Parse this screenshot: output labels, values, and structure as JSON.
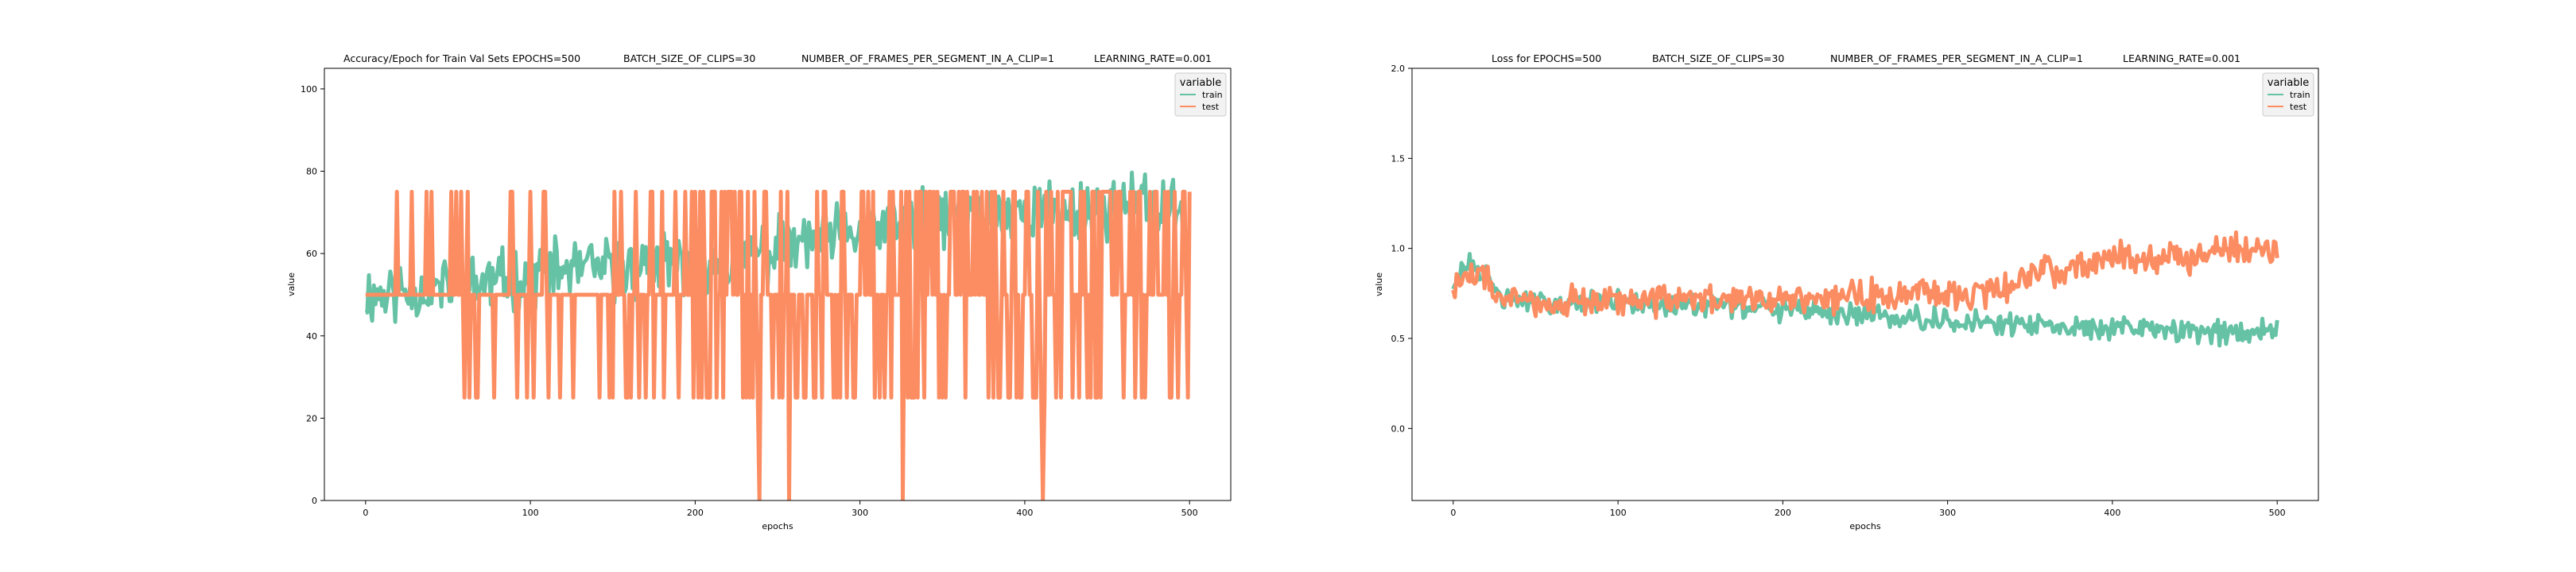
{
  "chart_data": [
    {
      "type": "line",
      "title_parts": [
        "Accuracy/Epoch for Train Val Sets EPOCHS=500",
        "BATCH_SIZE_OF_CLIPS=30",
        "NUMBER_OF_FRAMES_PER_SEGMENT_IN_A_CLIP=1",
        "LEARNING_RATE=0.001"
      ],
      "xlabel": "epochs",
      "ylabel": "value",
      "xlim": [
        -25,
        525
      ],
      "ylim": [
        0,
        105
      ],
      "xticks": [
        0,
        100,
        200,
        300,
        400,
        500
      ],
      "yticks": [
        0,
        20,
        40,
        60,
        80,
        100
      ],
      "grid": false,
      "legend": {
        "title": "variable",
        "position": "top-right",
        "entries": [
          "train",
          "test"
        ]
      },
      "colors": {
        "train": "#66c2a5",
        "test": "#fc8d62"
      },
      "series": [
        {
          "name": "train",
          "x": [
            0,
            25,
            50,
            75,
            100,
            125,
            150,
            175,
            200,
            225,
            250,
            275,
            300,
            325,
            350,
            375,
            400,
            425,
            450,
            475,
            500
          ],
          "values": [
            50,
            51,
            52,
            53,
            55,
            56,
            56,
            57,
            58,
            59,
            61,
            63,
            65,
            67,
            69,
            69,
            70,
            70,
            71,
            72,
            68
          ],
          "noise": 6,
          "seed": 11
        },
        {
          "name": "test",
          "x": [
            0,
            25,
            50,
            75,
            100,
            125,
            150,
            175,
            200,
            225,
            250,
            275,
            300,
            325,
            350,
            375,
            400,
            425,
            450,
            475,
            500
          ],
          "values": [
            50,
            50,
            50,
            50,
            50,
            50,
            50,
            50,
            50,
            50,
            50,
            50,
            50,
            50,
            50,
            50,
            50,
            50,
            50,
            50,
            50
          ],
          "levels": [
            0,
            25,
            50,
            75
          ],
          "seed": 23
        }
      ]
    },
    {
      "type": "line",
      "title_parts": [
        "Loss for  EPOCHS=500",
        "BATCH_SIZE_OF_CLIPS=30",
        "NUMBER_OF_FRAMES_PER_SEGMENT_IN_A_CLIP=1",
        "LEARNING_RATE=0.001"
      ],
      "xlabel": "epochs",
      "ylabel": "value",
      "xlim": [
        -25,
        525
      ],
      "ylim": [
        -0.4,
        2.0
      ],
      "xticks": [
        0,
        100,
        200,
        300,
        400,
        500
      ],
      "yticks": [
        0.0,
        0.5,
        1.0,
        1.5,
        2.0
      ],
      "grid": false,
      "legend": {
        "title": "variable",
        "position": "top-right",
        "entries": [
          "train",
          "test"
        ]
      },
      "colors": {
        "train": "#66c2a5",
        "test": "#fc8d62"
      },
      "series": [
        {
          "name": "train",
          "x": [
            0,
            10,
            20,
            30,
            50,
            75,
            100,
            125,
            150,
            175,
            200,
            225,
            250,
            275,
            300,
            325,
            350,
            375,
            400,
            425,
            450,
            475,
            500
          ],
          "values": [
            0.82,
            0.9,
            0.85,
            0.72,
            0.7,
            0.7,
            0.7,
            0.69,
            0.68,
            0.67,
            0.66,
            0.65,
            0.63,
            0.62,
            0.6,
            0.59,
            0.57,
            0.56,
            0.56,
            0.55,
            0.54,
            0.53,
            0.57
          ],
          "noise": 0.05,
          "seed": 31
        },
        {
          "name": "test",
          "x": [
            0,
            10,
            20,
            30,
            50,
            75,
            100,
            125,
            150,
            175,
            200,
            225,
            250,
            275,
            300,
            325,
            350,
            375,
            400,
            425,
            450,
            475,
            500
          ],
          "values": [
            0.8,
            0.85,
            0.82,
            0.72,
            0.7,
            0.71,
            0.71,
            0.71,
            0.72,
            0.72,
            0.72,
            0.73,
            0.74,
            0.75,
            0.74,
            0.76,
            0.85,
            0.9,
            0.95,
            0.95,
            0.95,
            1.0,
            1.0
          ],
          "noise": 0.07,
          "seed": 47
        }
      ]
    }
  ]
}
